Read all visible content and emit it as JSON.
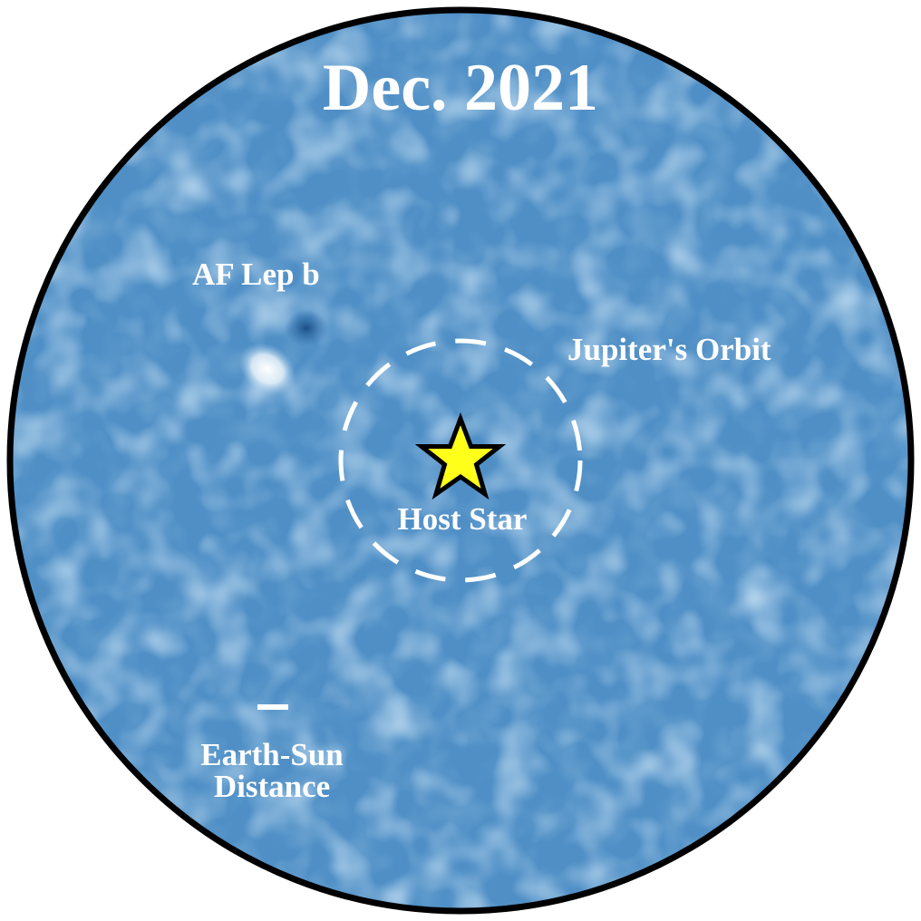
{
  "image": {
    "title": "Dec. 2021",
    "labels": {
      "planet": "AF Lep b",
      "orbit": "Jupiter's Orbit",
      "host_star": "Host Star",
      "scale_line1": "Earth-Sun",
      "scale_line2": "Distance"
    },
    "colors": {
      "background_blue": "#4f8fc6",
      "dark_blue": "#2d6aa8",
      "light_blue": "#9cc6e6",
      "planet_glow": "#ffffff",
      "star_fill": "#ffff1a",
      "star_outline": "#000000",
      "frame": "#000000",
      "text": "#ffffff"
    },
    "icons": {
      "star": "host-star-icon",
      "orbit": "dashed-orbit-circle",
      "scale": "scale-bar"
    }
  }
}
